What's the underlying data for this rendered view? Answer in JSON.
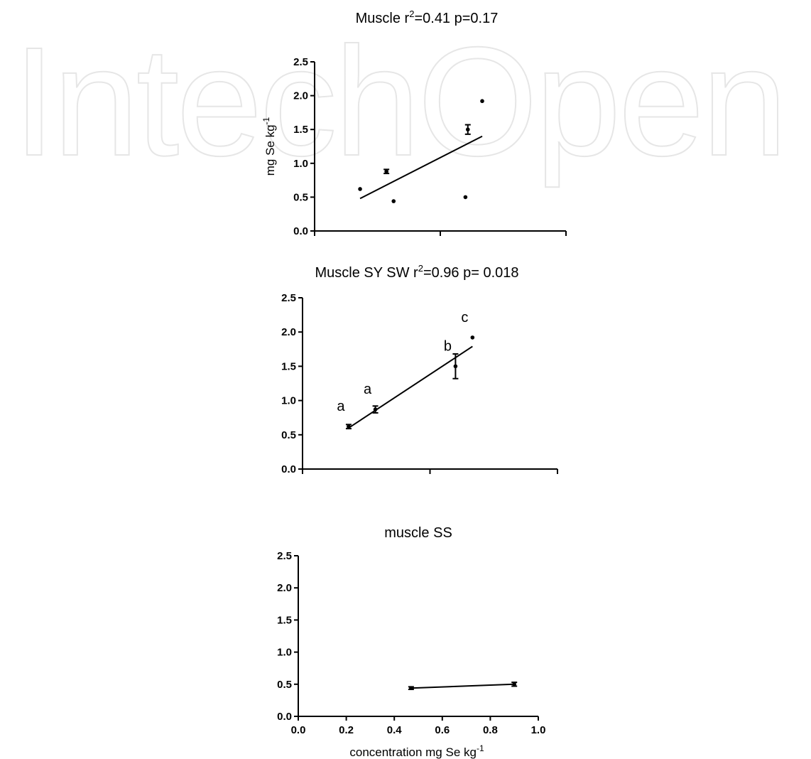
{
  "watermark": {
    "text": "IntechOpen",
    "color": "#e6e6e6"
  },
  "colors": {
    "ink": "#000000",
    "background": "#ffffff"
  },
  "chart_data": [
    {
      "type": "scatter",
      "title": "Muscle r",
      "title_sup": "2",
      "title_rest": "=0.41 p=0.17",
      "xlabel": "",
      "ylabel": "mg Se kg",
      "ylabel_sup": "-1",
      "xlim": [
        0.0,
        1.05
      ],
      "ylim": [
        0.0,
        2.5
      ],
      "yticks": [
        "0.0",
        "0.5",
        "1.0",
        "1.5",
        "2.0",
        "2.5"
      ],
      "xticks_labeled": false,
      "grid": false,
      "points": [
        {
          "x": 0.19,
          "y": 0.62,
          "err": 0
        },
        {
          "x": 0.3,
          "y": 0.88,
          "err": 0.03
        },
        {
          "x": 0.33,
          "y": 0.44,
          "err": 0
        },
        {
          "x": 0.63,
          "y": 0.5,
          "err": 0
        },
        {
          "x": 0.64,
          "y": 1.5,
          "err": 0.07
        },
        {
          "x": 0.7,
          "y": 1.92,
          "err": 0
        }
      ],
      "fit": [
        [
          0.19,
          0.48
        ],
        [
          0.7,
          1.4
        ]
      ]
    },
    {
      "type": "scatter",
      "title": "Muscle SY SW  r",
      "title_sup": "2",
      "title_rest": "=0.96 p= 0.018",
      "xlabel": "",
      "ylabel": "",
      "xlim": [
        0.0,
        1.05
      ],
      "ylim": [
        0.0,
        2.5
      ],
      "yticks": [
        "0.0",
        "0.5",
        "1.0",
        "1.5",
        "2.0",
        "2.5"
      ],
      "xticks_labeled": false,
      "grid": false,
      "points": [
        {
          "x": 0.19,
          "y": 0.62,
          "err": 0.03,
          "label": "a"
        },
        {
          "x": 0.3,
          "y": 0.87,
          "err": 0.05,
          "label": "a"
        },
        {
          "x": 0.63,
          "y": 1.5,
          "err": 0.18,
          "label": "b"
        },
        {
          "x": 0.7,
          "y": 1.92,
          "err": 0,
          "label": "c"
        }
      ],
      "fit": [
        [
          0.19,
          0.6
        ],
        [
          0.7,
          1.79
        ]
      ]
    },
    {
      "type": "line",
      "title": "muscle SS",
      "xlabel": "concentration mg Se kg",
      "xlabel_sup": "-1",
      "ylabel": "",
      "xlim": [
        0.0,
        1.0
      ],
      "ylim": [
        0.0,
        2.5
      ],
      "yticks": [
        "0.0",
        "0.5",
        "1.0",
        "1.5",
        "2.0",
        "2.5"
      ],
      "xticks": [
        "0.0",
        "0.2",
        "0.4",
        "0.6",
        "0.8",
        "1.0"
      ],
      "xticks_labeled": true,
      "grid": false,
      "points": [
        {
          "x": 0.47,
          "y": 0.44,
          "err": 0.02
        },
        {
          "x": 0.9,
          "y": 0.5,
          "err": 0.03
        }
      ],
      "fit": [
        [
          0.47,
          0.44
        ],
        [
          0.9,
          0.5
        ]
      ]
    }
  ]
}
